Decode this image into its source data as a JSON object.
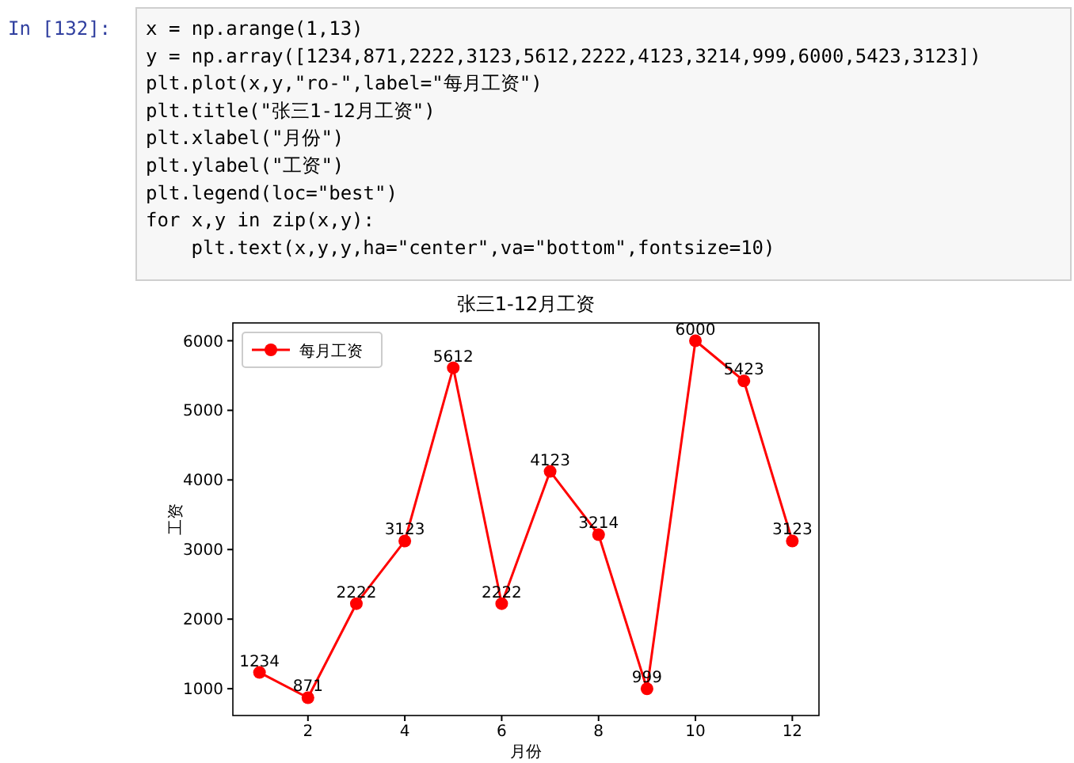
{
  "chart_data": {
    "type": "line",
    "title": "张三1-12月工资",
    "xlabel": "月份",
    "ylabel": "工资",
    "x": [
      1,
      2,
      3,
      4,
      5,
      6,
      7,
      8,
      9,
      10,
      11,
      12
    ],
    "series": [
      {
        "name": "每月工资",
        "color": "#ff0000",
        "values": [
          1234,
          871,
          2222,
          3123,
          5612,
          2222,
          4123,
          3214,
          999,
          6000,
          5423,
          3123
        ]
      }
    ],
    "xlim": [
      0.45,
      12.55
    ],
    "ylim": [
      615,
      6256
    ],
    "xticks": [
      2,
      4,
      6,
      8,
      10,
      12
    ],
    "yticks": [
      1000,
      2000,
      3000,
      4000,
      5000,
      6000
    ],
    "marker": "circle",
    "line_style": "solid",
    "legend": "top left",
    "data_labels": true,
    "annotations": [
      "In [132]:",
      "x = np.arange(1,13)",
      "y = np.array([1234,871,2222,3123,5612,2222,4123,3214,999,6000,5423,3123])",
      "plt.plot(x,y,\"ro-\",label=\"每月工资\")",
      "plt.title(\"张三1-12月工资\")",
      "plt.xlabel(\"月份\")",
      "plt.ylabel(\"工资\")",
      "plt.legend(loc=\"best\")",
      "for x,y in zip(x,y):",
      "    plt.text(x,y,y,ha=\"center\",va=\"bottom\",fontsize=10)"
    ]
  }
}
